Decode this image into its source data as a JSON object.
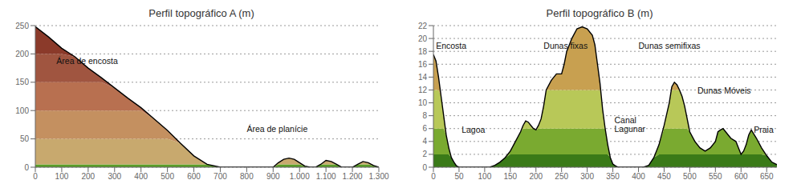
{
  "chart_data": [
    {
      "type": "area",
      "title": "Perfil topográfico A (m)",
      "xlim": [
        0,
        1300
      ],
      "ylim": [
        0,
        250
      ],
      "yticks": [
        0,
        50,
        100,
        150,
        200,
        250
      ],
      "xticks": [
        0,
        100,
        200,
        300,
        400,
        500,
        600,
        700,
        800,
        900,
        {
          "value": 1000,
          "label": "1.000"
        },
        {
          "value": 1100,
          "label": "1.100"
        },
        {
          "value": 1200,
          "label": "1.200"
        },
        {
          "value": 1300,
          "label": "1.300"
        }
      ],
      "grid": "y",
      "annotations": [
        {
          "text": "Área de encosta",
          "x": 80,
          "y": 195
        },
        {
          "text": "Área de planície",
          "x": 800,
          "y": 75
        }
      ],
      "x": [
        0,
        50,
        100,
        150,
        200,
        250,
        300,
        350,
        400,
        450,
        500,
        550,
        600,
        650,
        700,
        750,
        800,
        850,
        900,
        920,
        940,
        960,
        980,
        1000,
        1020,
        1040,
        1060,
        1080,
        1100,
        1120,
        1140,
        1160,
        1200,
        1220,
        1240,
        1260,
        1280,
        1300
      ],
      "values": [
        248,
        230,
        210,
        195,
        175,
        158,
        140,
        122,
        105,
        85,
        65,
        42,
        20,
        5,
        0,
        0,
        0,
        0,
        0,
        8,
        14,
        16,
        14,
        8,
        2,
        0,
        0,
        5,
        12,
        10,
        5,
        0,
        0,
        5,
        10,
        8,
        3,
        0
      ],
      "color": "#000000",
      "bands": [
        {
          "y_min": 0,
          "y_max": 5,
          "color": "#5a9e28"
        },
        {
          "y_min": 5,
          "y_max": 50,
          "color": "#c8a96e"
        },
        {
          "y_min": 50,
          "y_max": 100,
          "color": "#c49060"
        },
        {
          "y_min": 100,
          "y_max": 150,
          "color": "#b87050"
        },
        {
          "y_min": 150,
          "y_max": 200,
          "color": "#a05540"
        },
        {
          "y_min": 200,
          "y_max": 260,
          "color": "#8b3a2a"
        }
      ]
    },
    {
      "type": "area",
      "title": "Perfil topográfico B (m)",
      "xlim": [
        0,
        670
      ],
      "ylim": [
        0,
        22
      ],
      "yticks": [
        0,
        2,
        4,
        6,
        8,
        10,
        12,
        14,
        16,
        18,
        20,
        22
      ],
      "xticks": [
        0,
        50,
        100,
        150,
        200,
        250,
        300,
        350,
        400,
        450,
        500,
        550,
        600,
        650
      ],
      "grid": "y",
      "annotations": [
        {
          "text": "Encosta",
          "x": 5,
          "y": 19.5
        },
        {
          "text": "Dunas fixas",
          "x": 215,
          "y": 19.5
        },
        {
          "text": "Dunas semifixas",
          "x": 400,
          "y": 19.5
        },
        {
          "text": "Lagoa",
          "x": 55,
          "y": 6.5
        },
        {
          "text": "Canal\nLagunar",
          "x": 353,
          "y": 8.0
        },
        {
          "text": "Dunas Móveis",
          "x": 515,
          "y": 12.5
        },
        {
          "text": "Praia",
          "x": 625,
          "y": 6.5
        }
      ],
      "x": [
        0,
        5,
        10,
        15,
        20,
        25,
        30,
        35,
        40,
        45,
        50,
        55,
        60,
        70,
        80,
        90,
        100,
        110,
        120,
        130,
        140,
        150,
        160,
        170,
        175,
        180,
        185,
        190,
        195,
        200,
        205,
        210,
        215,
        220,
        230,
        240,
        250,
        255,
        260,
        265,
        270,
        280,
        290,
        300,
        310,
        315,
        320,
        325,
        330,
        335,
        340,
        345,
        350,
        355,
        360,
        365,
        370,
        380,
        390,
        400,
        410,
        420,
        430,
        440,
        450,
        460,
        465,
        470,
        475,
        480,
        485,
        490,
        495,
        500,
        510,
        520,
        530,
        540,
        550,
        555,
        560,
        565,
        570,
        575,
        580,
        590,
        600,
        605,
        610,
        615,
        620,
        630,
        640,
        650,
        660,
        670
      ],
      "values": [
        17.5,
        16.5,
        14.0,
        11.0,
        8.0,
        5.0,
        3.0,
        1.5,
        0.8,
        0.2,
        0.0,
        0.0,
        0.0,
        0.0,
        0.0,
        0.0,
        0.0,
        0.0,
        0.3,
        0.8,
        1.5,
        2.5,
        4.0,
        5.5,
        6.5,
        7.2,
        7.0,
        6.5,
        6.0,
        5.8,
        6.5,
        7.5,
        9.5,
        12.0,
        13.5,
        14.5,
        14.5,
        16.0,
        18.0,
        19.0,
        20.0,
        21.5,
        21.8,
        21.5,
        20.5,
        19.0,
        16.0,
        13.0,
        9.0,
        6.0,
        3.5,
        1.5,
        0.5,
        0.2,
        0.0,
        0.0,
        0.0,
        0.0,
        0.0,
        0.0,
        0.0,
        0.3,
        1.5,
        3.5,
        6.5,
        10.0,
        12.5,
        13.2,
        12.8,
        12.0,
        11.0,
        9.5,
        7.5,
        5.5,
        4.0,
        3.0,
        2.5,
        3.0,
        4.0,
        5.5,
        5.8,
        6.0,
        5.5,
        5.0,
        4.5,
        4.0,
        2.0,
        2.5,
        3.5,
        5.0,
        5.8,
        4.5,
        3.0,
        1.8,
        0.8,
        0.4
      ],
      "color": "#000000",
      "bands": [
        {
          "y_min": 0,
          "y_max": 2,
          "color": "#3a7a18"
        },
        {
          "y_min": 2,
          "y_max": 6,
          "color": "#7aaa30"
        },
        {
          "y_min": 6,
          "y_max": 12,
          "color": "#b8c858"
        },
        {
          "y_min": 12,
          "y_max": 22,
          "color": "#c8a050"
        }
      ]
    }
  ]
}
